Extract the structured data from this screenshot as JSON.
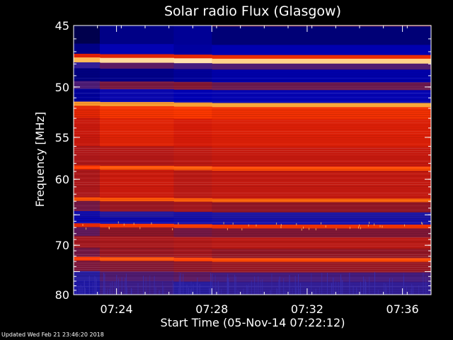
{
  "chart_data": {
    "type": "heatmap",
    "title": "Solar radio Flux (Glasgow)",
    "xlabel": "Start Time (05-Nov-14 07:22:12)",
    "ylabel": "Frequency [MHz]",
    "x_ticks": [
      "07:24",
      "07:28",
      "07:32",
      "07:36"
    ],
    "x_tick_minutes": [
      1.8,
      5.8,
      9.8,
      13.8
    ],
    "xlim_minutes": [
      0,
      15
    ],
    "y_ticks": [
      45,
      50,
      55,
      60,
      65,
      70,
      75,
      80
    ],
    "y_tick_labels": [
      "45",
      "50",
      "55",
      "60",
      "",
      "70",
      "",
      "80"
    ],
    "ylim": [
      45,
      80
    ],
    "y_scale": "reciprocal",
    "grid": false,
    "colorscale": [
      "#000033",
      "#0000b4",
      "#2a1fa0",
      "#8a1628",
      "#d41a08",
      "#ff3a00",
      "#ff7a10",
      "#ffb040",
      "#fff6d8"
    ],
    "bands": [
      {
        "f0": 45.0,
        "f1": 46.4,
        "level": 0.08
      },
      {
        "f0": 46.4,
        "f1": 47.2,
        "level": 0.12
      },
      {
        "f0": 47.2,
        "f1": 47.5,
        "level": 0.55
      },
      {
        "f0": 47.5,
        "f1": 47.9,
        "level": 0.95
      },
      {
        "f0": 47.9,
        "f1": 48.4,
        "level": 0.3
      },
      {
        "f0": 48.4,
        "f1": 49.5,
        "level": 0.1
      },
      {
        "f0": 49.5,
        "f1": 50.2,
        "level": 0.35
      },
      {
        "f0": 50.2,
        "f1": 51.4,
        "level": 0.14
      },
      {
        "f0": 51.4,
        "f1": 51.8,
        "level": 0.85
      },
      {
        "f0": 51.8,
        "f1": 53.0,
        "level": 0.6
      },
      {
        "f0": 53.0,
        "f1": 56.0,
        "level": 0.52
      },
      {
        "f0": 56.0,
        "f1": 58.3,
        "level": 0.46
      },
      {
        "f0": 58.3,
        "f1": 58.8,
        "level": 0.68
      },
      {
        "f0": 58.8,
        "f1": 62.5,
        "level": 0.47
      },
      {
        "f0": 62.5,
        "f1": 63.0,
        "level": 0.7
      },
      {
        "f0": 63.0,
        "f1": 64.5,
        "level": 0.4
      },
      {
        "f0": 64.5,
        "f1": 65.4,
        "level": 0.22
      },
      {
        "f0": 65.4,
        "f1": 66.4,
        "level": 0.18
      },
      {
        "f0": 66.4,
        "f1": 67.0,
        "level": 0.62
      },
      {
        "f0": 67.0,
        "f1": 68.5,
        "level": 0.36
      },
      {
        "f0": 68.5,
        "f1": 70.5,
        "level": 0.44
      },
      {
        "f0": 70.5,
        "f1": 72.2,
        "level": 0.4
      },
      {
        "f0": 72.2,
        "f1": 72.9,
        "level": 0.66
      },
      {
        "f0": 72.9,
        "f1": 75.0,
        "level": 0.38
      },
      {
        "f0": 75.0,
        "f1": 77.0,
        "level": 0.3
      },
      {
        "f0": 77.0,
        "f1": 80.0,
        "level": 0.26
      }
    ],
    "vertical_steps_minutes": [
      1.1,
      4.2,
      5.8
    ]
  },
  "footer": {
    "updated": "Updated Wed Feb 21 23:46:20 2018"
  }
}
